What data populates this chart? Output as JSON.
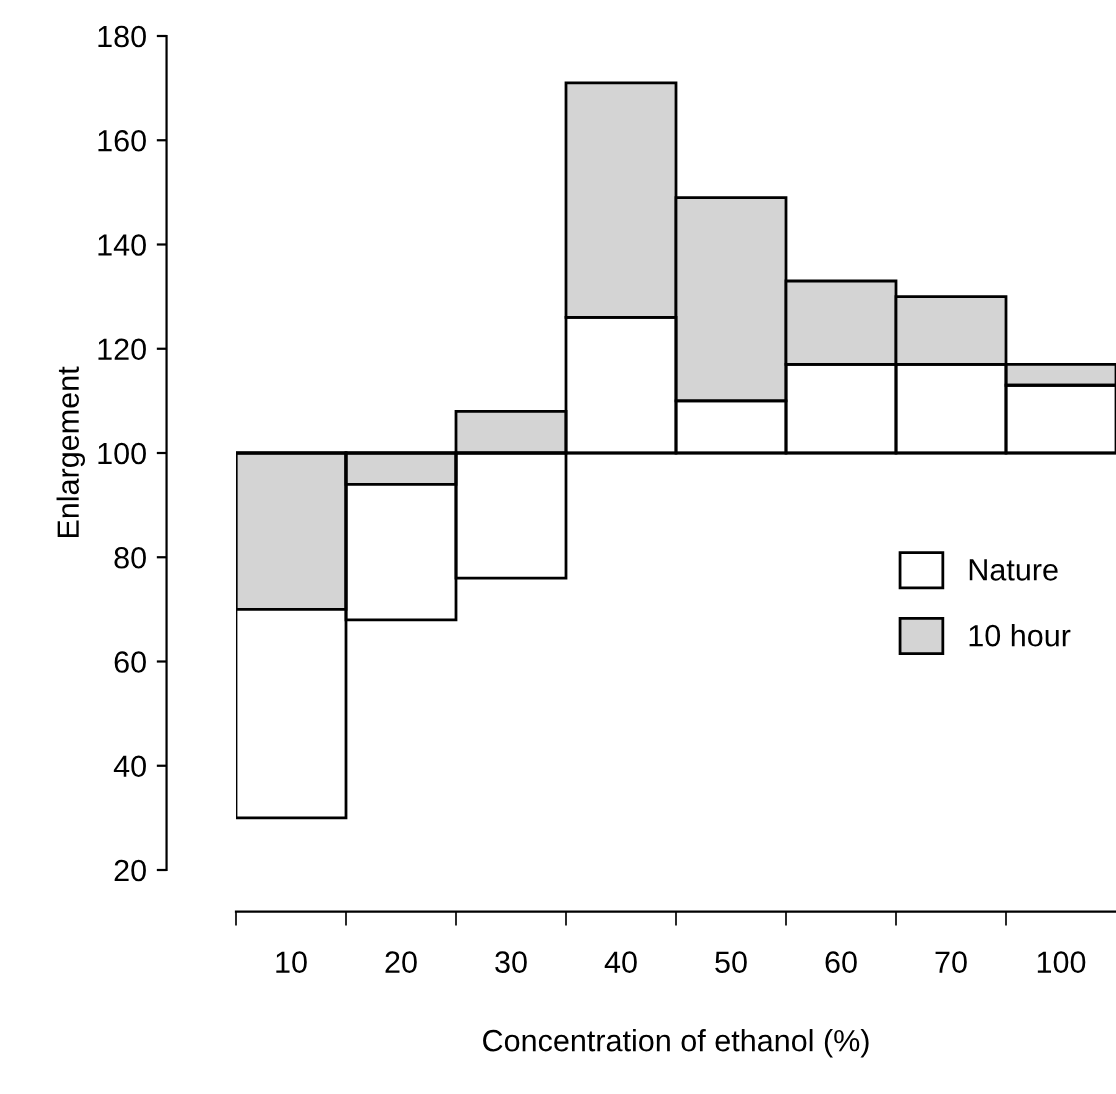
{
  "chart_data": {
    "type": "bar",
    "xlabel": "Concentration of ethanol (%)",
    "ylabel": "Enlargement",
    "categories": [
      "10",
      "20",
      "30",
      "40",
      "50",
      "60",
      "70",
      "100"
    ],
    "series": [
      {
        "name": "10 hour",
        "color": "#d4d4d4",
        "base": [
          70,
          94,
          100,
          126,
          110,
          117,
          117,
          113
        ],
        "values": [
          30,
          6,
          8,
          45,
          39,
          16,
          13,
          4
        ]
      },
      {
        "name": "Nature",
        "color": "#000000",
        "base": [
          100,
          100,
          100,
          100,
          100,
          100,
          100,
          100
        ],
        "values": [
          -70,
          -32,
          -24,
          26,
          10,
          17,
          17,
          13
        ]
      }
    ],
    "ylim": [
      20,
      180
    ],
    "yticks": [
      20,
      40,
      60,
      80,
      100,
      120,
      140,
      160,
      180
    ],
    "ref_lines": [
      {
        "axis": "y",
        "value": 100
      }
    ],
    "legend": "right",
    "grid": false
  }
}
